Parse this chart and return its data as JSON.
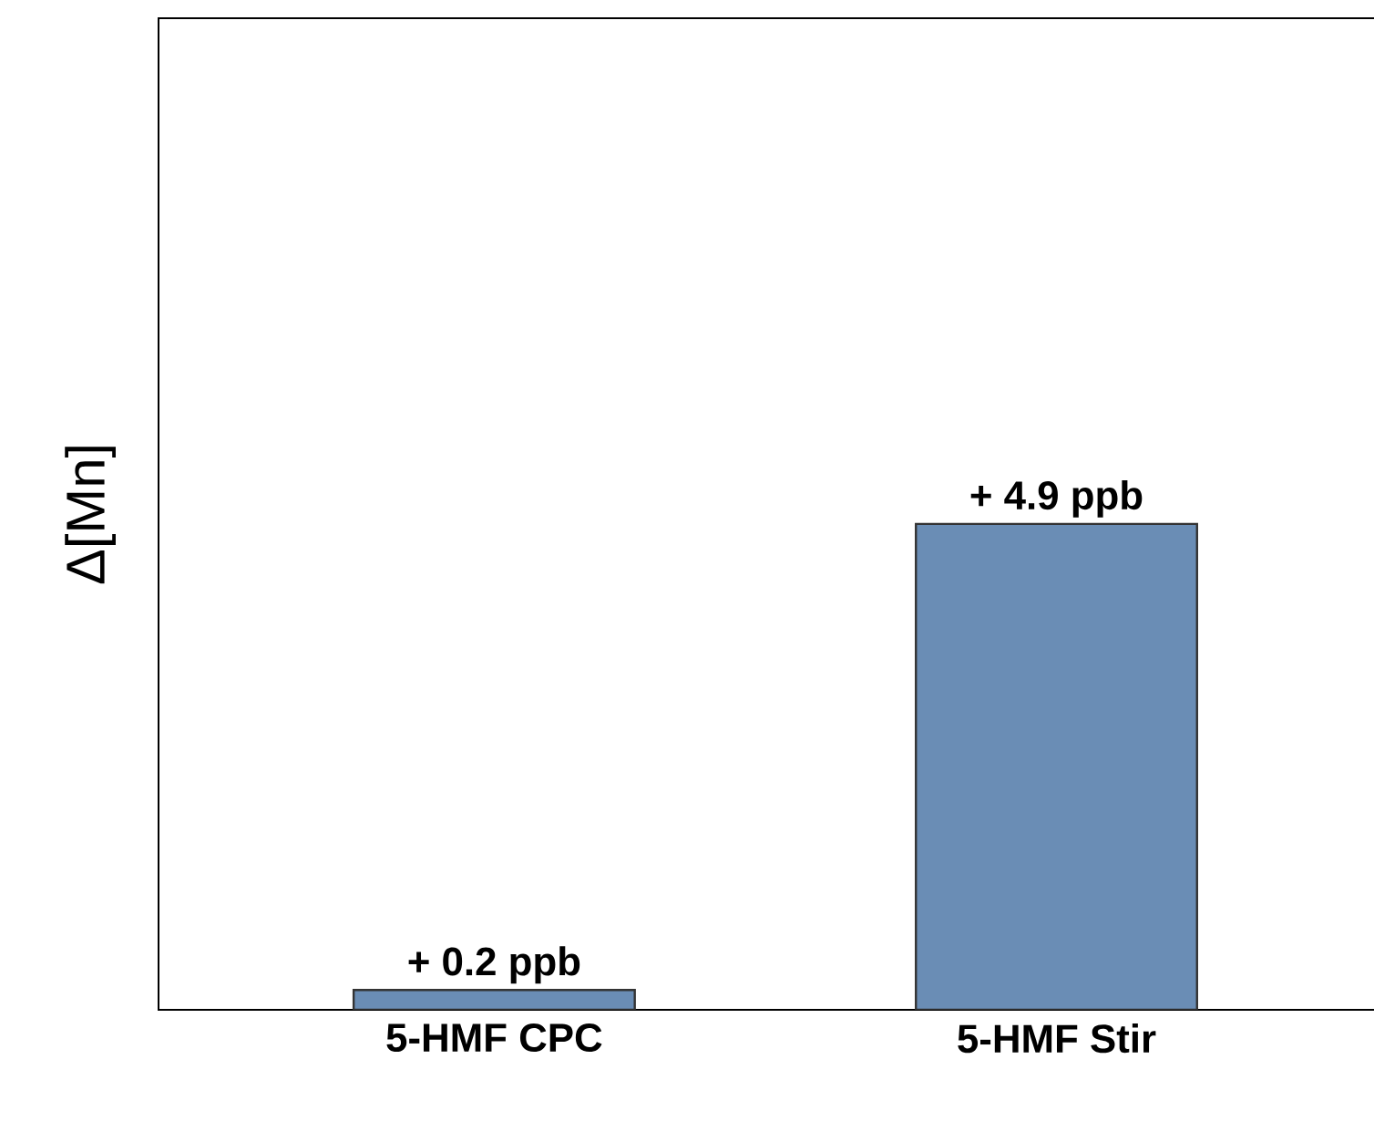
{
  "chart_data": {
    "type": "bar",
    "ylabel": "Δ[Mn]",
    "categories": [
      "5-HMF CPC",
      "5-HMF Stir"
    ],
    "values": [
      0.2,
      4.9
    ],
    "color": "#6a8db5",
    "ylim": [
      0,
      10
    ],
    "value_labels": [
      "+ 0.2 ppb",
      "+ 4.9 ppb"
    ],
    "grid": false
  }
}
